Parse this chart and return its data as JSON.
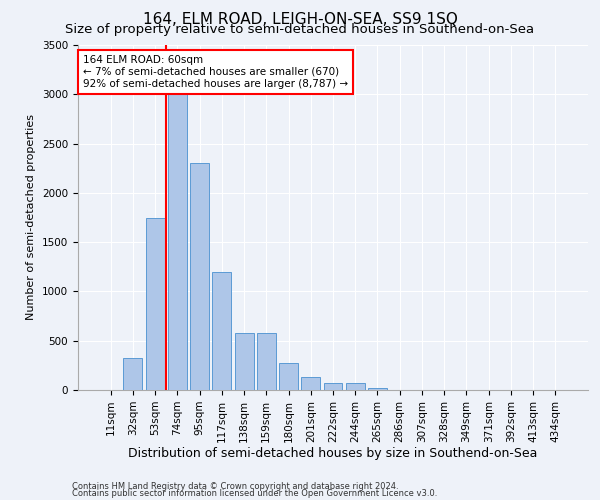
{
  "title": "164, ELM ROAD, LEIGH-ON-SEA, SS9 1SQ",
  "subtitle": "Size of property relative to semi-detached houses in Southend-on-Sea",
  "xlabel": "Distribution of semi-detached houses by size in Southend-on-Sea",
  "ylabel": "Number of semi-detached properties",
  "categories": [
    "11sqm",
    "32sqm",
    "53sqm",
    "74sqm",
    "95sqm",
    "117sqm",
    "138sqm",
    "159sqm",
    "180sqm",
    "201sqm",
    "222sqm",
    "244sqm",
    "265sqm",
    "286sqm",
    "307sqm",
    "328sqm",
    "349sqm",
    "371sqm",
    "392sqm",
    "413sqm",
    "434sqm"
  ],
  "values": [
    5,
    320,
    1750,
    3050,
    2300,
    1200,
    580,
    580,
    270,
    130,
    75,
    75,
    25,
    5,
    5,
    2,
    1,
    0,
    0,
    0,
    0
  ],
  "bar_color": "#aec6e8",
  "bar_edge_color": "#5b9bd5",
  "vline_color": "red",
  "vline_x": 2.5,
  "annotation_text": "164 ELM ROAD: 60sqm\n← 7% of semi-detached houses are smaller (670)\n92% of semi-detached houses are larger (8,787) →",
  "annotation_box_color": "white",
  "annotation_box_edge": "red",
  "ylim": [
    0,
    3500
  ],
  "yticks": [
    0,
    500,
    1000,
    1500,
    2000,
    2500,
    3000,
    3500
  ],
  "footer1": "Contains HM Land Registry data © Crown copyright and database right 2024.",
  "footer2": "Contains public sector information licensed under the Open Government Licence v3.0.",
  "background_color": "#eef2f9",
  "plot_background": "#eef2f9",
  "title_fontsize": 11,
  "subtitle_fontsize": 9.5,
  "xlabel_fontsize": 9,
  "ylabel_fontsize": 8,
  "tick_fontsize": 7.5,
  "annotation_fontsize": 7.5,
  "footer_fontsize": 6
}
